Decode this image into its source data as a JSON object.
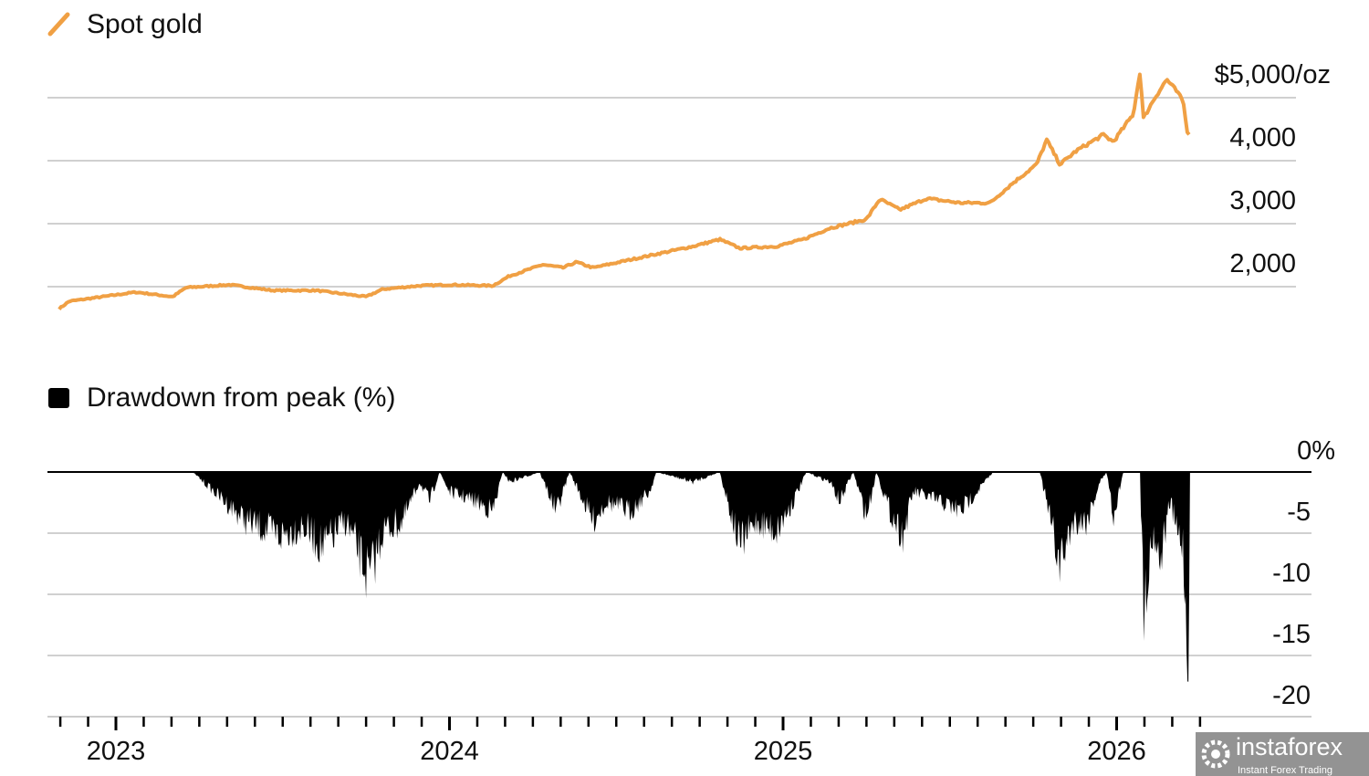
{
  "chart_data": [
    {
      "type": "line",
      "legend": "Spot gold",
      "color": "#f0a044",
      "ylim": [
        1500,
        5000
      ],
      "y_ticks": [
        {
          "value": 5000,
          "label": "$5,000/oz"
        },
        {
          "value": 4000,
          "label": "4,000"
        },
        {
          "value": 3000,
          "label": "3,000"
        },
        {
          "value": 2000,
          "label": "2,000"
        }
      ],
      "grid": true,
      "points": [
        [
          2022.83,
          1650
        ],
        [
          2022.86,
          1768
        ],
        [
          2023.06,
          1913
        ],
        [
          2023.17,
          1840
        ],
        [
          2023.21,
          1985
        ],
        [
          2023.34,
          2030
        ],
        [
          2023.47,
          1940
        ],
        [
          2023.6,
          1940
        ],
        [
          2023.75,
          1840
        ],
        [
          2023.8,
          1960
        ],
        [
          2023.91,
          2015
        ],
        [
          2024.0,
          2030
        ],
        [
          2024.13,
          2015
        ],
        [
          2024.18,
          2170
        ],
        [
          2024.28,
          2350
        ],
        [
          2024.34,
          2300
        ],
        [
          2024.38,
          2390
        ],
        [
          2024.43,
          2300
        ],
        [
          2024.57,
          2460
        ],
        [
          2024.73,
          2640
        ],
        [
          2024.81,
          2750
        ],
        [
          2024.87,
          2610
        ],
        [
          2024.98,
          2640
        ],
        [
          2025.06,
          2750
        ],
        [
          2025.14,
          2930
        ],
        [
          2025.25,
          3070
        ],
        [
          2025.29,
          3390
        ],
        [
          2025.35,
          3220
        ],
        [
          2025.43,
          3400
        ],
        [
          2025.53,
          3330
        ],
        [
          2025.62,
          3330
        ],
        [
          2025.69,
          3650
        ],
        [
          2025.76,
          3940
        ],
        [
          2025.79,
          4330
        ],
        [
          2025.83,
          3940
        ],
        [
          2025.88,
          4160
        ],
        [
          2025.96,
          4410
        ],
        [
          2025.99,
          4300
        ],
        [
          2026.05,
          4740
        ],
        [
          2026.07,
          5420
        ],
        [
          2026.08,
          4670
        ],
        [
          2026.11,
          4960
        ],
        [
          2026.15,
          5290
        ],
        [
          2026.18,
          5100
        ],
        [
          2026.2,
          4930
        ],
        [
          2026.21,
          4490
        ],
        [
          2026.22,
          4400
        ]
      ]
    },
    {
      "type": "area",
      "legend": "Drawdown from peak (%)",
      "color": "#000000",
      "ylim": [
        -20,
        0
      ],
      "y_ticks": [
        {
          "value": 0,
          "label": "0%"
        },
        {
          "value": -5,
          "label": "-5"
        },
        {
          "value": -10,
          "label": "-10"
        },
        {
          "value": -15,
          "label": "-15"
        },
        {
          "value": -20,
          "label": "-20"
        }
      ],
      "grid": true,
      "points": [
        [
          2023.23,
          0
        ],
        [
          2023.31,
          -2.5
        ],
        [
          2023.39,
          -5
        ],
        [
          2023.49,
          -6.5
        ],
        [
          2023.56,
          -5.5
        ],
        [
          2023.62,
          -7.7
        ],
        [
          2023.69,
          -5
        ],
        [
          2023.76,
          -11
        ],
        [
          2023.8,
          -6
        ],
        [
          2023.86,
          -5
        ],
        [
          2023.91,
          -1
        ],
        [
          2023.94,
          -3
        ],
        [
          2023.97,
          0
        ],
        [
          2024.0,
          -2
        ],
        [
          2024.08,
          -3
        ],
        [
          2024.13,
          -4
        ],
        [
          2024.16,
          0
        ],
        [
          2024.18,
          -1
        ],
        [
          2024.27,
          0
        ],
        [
          2024.32,
          -4
        ],
        [
          2024.36,
          0
        ],
        [
          2024.43,
          -5
        ],
        [
          2024.47,
          -3
        ],
        [
          2024.54,
          -4
        ],
        [
          2024.6,
          -2
        ],
        [
          2024.62,
          0
        ],
        [
          2024.73,
          -1
        ],
        [
          2024.81,
          0
        ],
        [
          2024.87,
          -7.5
        ],
        [
          2024.92,
          -5
        ],
        [
          2024.98,
          -6
        ],
        [
          2025.03,
          -3
        ],
        [
          2025.07,
          0
        ],
        [
          2025.14,
          -1
        ],
        [
          2025.17,
          -3
        ],
        [
          2025.21,
          0
        ],
        [
          2025.25,
          -4.5
        ],
        [
          2025.28,
          0
        ],
        [
          2025.32,
          -4
        ],
        [
          2025.36,
          -6.5
        ],
        [
          2025.39,
          -2
        ],
        [
          2025.47,
          -3
        ],
        [
          2025.53,
          -4
        ],
        [
          2025.58,
          -2
        ],
        [
          2025.63,
          0
        ],
        [
          2025.77,
          0
        ],
        [
          2025.83,
          -9.5
        ],
        [
          2025.87,
          -5
        ],
        [
          2025.91,
          -5
        ],
        [
          2025.95,
          -1
        ],
        [
          2025.97,
          0
        ],
        [
          2025.99,
          -4.5
        ],
        [
          2026.02,
          0
        ],
        [
          2026.07,
          0
        ],
        [
          2026.08,
          -13.5
        ],
        [
          2026.11,
          -6
        ],
        [
          2026.13,
          -9
        ],
        [
          2026.16,
          -3
        ],
        [
          2026.18,
          -6
        ],
        [
          2026.2,
          -7.5
        ],
        [
          2026.21,
          -18.5
        ],
        [
          2026.215,
          -18.5
        ],
        [
          2026.22,
          0
        ]
      ]
    }
  ],
  "x_axis": {
    "range": [
      2022.83,
      2026.22
    ],
    "labels": [
      "2023",
      "2024",
      "2025",
      "2026"
    ],
    "minor_ticks": "monthly"
  },
  "watermark": {
    "brand": "instaforex",
    "tagline": "Instant Forex Trading"
  }
}
